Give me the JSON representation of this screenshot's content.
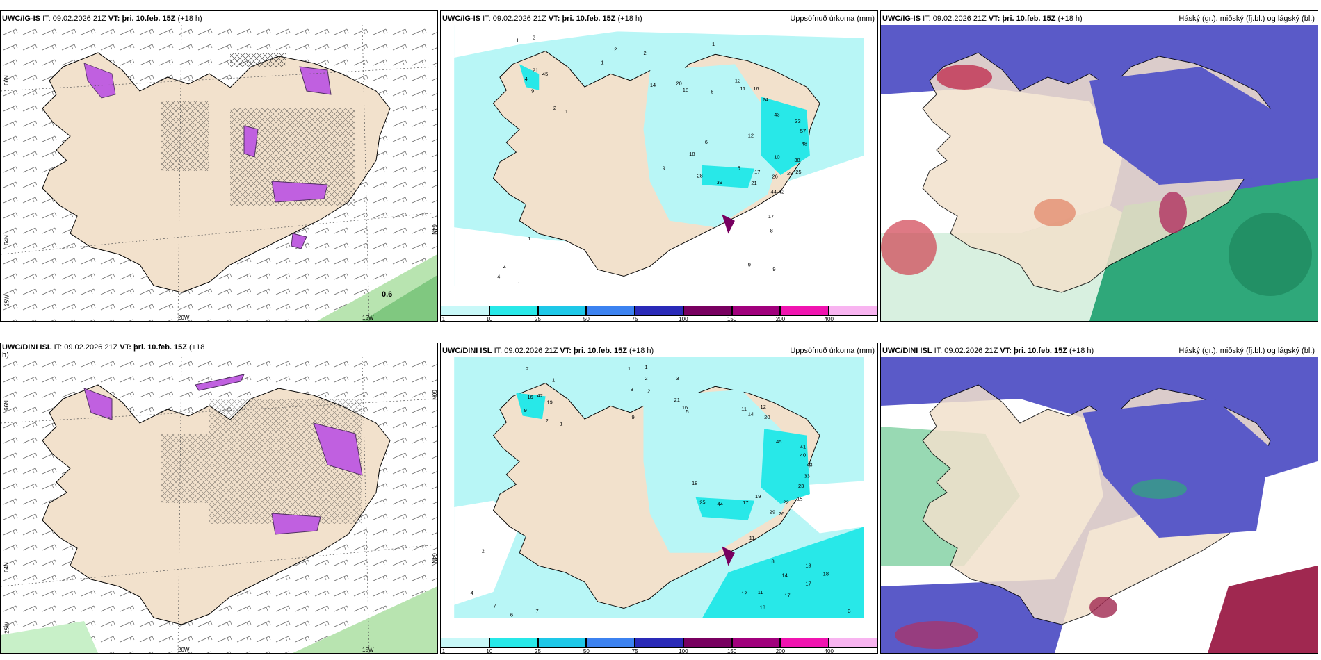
{
  "panels": {
    "top_left": {
      "model": "UWC/IG-IS",
      "it_label": "IT:",
      "it": "09.02.2026 21Z",
      "vt_label": "VT:",
      "vt": "þri. 10.feb. 15Z",
      "lead": "(+18 h)"
    },
    "top_mid": {
      "model": "UWC/IG-IS",
      "it_label": "IT:",
      "it": "09.02.2026 21Z",
      "vt_label": "VT:",
      "vt": "þri. 10.feb. 15Z",
      "lead": "(+18 h)",
      "right": "Uppsöfnuð úrkoma (mm)"
    },
    "top_right": {
      "model": "UWC/IG-IS",
      "it_label": "IT:",
      "it": "09.02.2026 21Z",
      "vt_label": "VT:",
      "vt": "þri. 10.feb. 15Z",
      "lead": "(+18 h)",
      "right": "Háský (gr.), miðský (fj.bl.) og lágský (bl.)"
    },
    "bot_left": {
      "model": "UWC/DINI ISL",
      "it_label": "IT:",
      "it": "09.02.2026 21Z",
      "vt_label": "VT:",
      "vt": "þri. 10.feb. 15Z",
      "lead": "(+18",
      "lead2": "h)"
    },
    "bot_mid": {
      "model": "UWC/DINI ISL",
      "it_label": "IT:",
      "it": "09.02.2026 21Z",
      "vt_label": "VT:",
      "vt": "þri. 10.feb. 15Z",
      "lead": "(+18 h)",
      "right": "Uppsöfnuð úrkoma (mm)"
    },
    "bot_right": {
      "model": "UWC/DINI ISL",
      "it_label": "IT:",
      "it": "09.02.2026 21Z",
      "vt_label": "VT:",
      "vt": "þri. 10.feb. 15Z",
      "lead": "(+18 h)",
      "right": "Háský (gr.), miðský (fj.bl.) og lágský (bl.)"
    }
  },
  "axes": {
    "lat66": "66N",
    "lat64": "64N",
    "lon25": "25W",
    "lon20": "20W",
    "lon15": "15W",
    "east66": "66N",
    "east64": "64N"
  },
  "colorbar": {
    "labels": [
      "1",
      "10",
      "25",
      "50",
      "75",
      "100",
      "150",
      "200",
      "400"
    ],
    "colors": [
      "#c8f8f8",
      "#28e8e8",
      "#1ec8e8",
      "#3c82f0",
      "#2a2ab8",
      "#780060",
      "#a0007c",
      "#f014b0",
      "#f8b4f0"
    ]
  },
  "colors": {
    "land": "#f2e1cc",
    "sea_precip": "#b8f6f6",
    "wind_green": "#9cd89c",
    "cloud_blue": "#5a5ac8",
    "snow_purple": "#c060e0"
  },
  "wind_value": "0.6",
  "precip_top": [
    "1",
    "2",
    "1",
    "2",
    "1",
    "2",
    "4",
    "21",
    "45",
    "9",
    "2",
    "1",
    "14",
    "20",
    "18",
    "6",
    "12",
    "11",
    "16",
    "24",
    "43",
    "33",
    "57",
    "48",
    "38",
    "29",
    "25",
    "26",
    "44",
    "42",
    "12",
    "10",
    "17",
    "21",
    "18",
    "28",
    "39",
    "6",
    "5",
    "9",
    "17",
    "1",
    "4",
    "4",
    "1",
    "9",
    "8",
    "9"
  ],
  "precip_bot": [
    "2",
    "1",
    "1",
    "2",
    "1",
    "3",
    "2",
    "3",
    "16",
    "42",
    "19",
    "9",
    "2",
    "1",
    "9",
    "21",
    "16",
    "5",
    "11",
    "14",
    "12",
    "20",
    "45",
    "41",
    "40",
    "43",
    "33",
    "23",
    "15",
    "22",
    "29",
    "26",
    "18",
    "25",
    "44",
    "19",
    "17",
    "11",
    "13",
    "14",
    "17",
    "18",
    "12",
    "11",
    "17",
    "18",
    "2",
    "4",
    "7",
    "6",
    "7",
    "3",
    "8"
  ]
}
